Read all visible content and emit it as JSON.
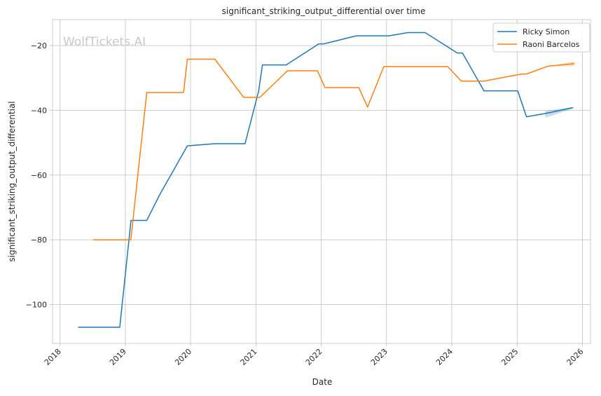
{
  "chart_data": {
    "type": "line",
    "title": "significant_striking_output_differential over time",
    "xlabel": "Date",
    "ylabel": "significant_striking_output_differential",
    "watermark": "WolfTickets.AI",
    "xlim": [
      "2017-11-20",
      "2026-02-15"
    ],
    "ylim": [
      -112,
      -12
    ],
    "x_ticks": [
      "2018-01-01",
      "2019-01-01",
      "2020-01-01",
      "2021-01-01",
      "2022-01-01",
      "2023-01-01",
      "2024-01-01",
      "2025-01-01",
      "2026-01-01"
    ],
    "x_tick_labels": [
      "2018",
      "2019",
      "2020",
      "2021",
      "2022",
      "2023",
      "2024",
      "2025",
      "2026"
    ],
    "y_ticks": [
      -100,
      -80,
      -60,
      -40,
      -20
    ],
    "y_tick_labels": [
      "−100",
      "−80",
      "−60",
      "−40",
      "−20"
    ],
    "grid": true,
    "legend_position": "top-right",
    "series": [
      {
        "name": "Ricky Simon",
        "color": "#1f77b4",
        "x": [
          "2018-04-14",
          "2018-12-01",
          "2019-02-02",
          "2019-05-01",
          "2019-07-13",
          "2019-12-14",
          "2020-05-16",
          "2020-11-01",
          "2021-01-16",
          "2021-02-06",
          "2021-06-19",
          "2021-12-18",
          "2022-01-15",
          "2022-07-16",
          "2023-01-14",
          "2023-05-01",
          "2023-08-05",
          "2024-02-01",
          "2024-03-01",
          "2024-06-29",
          "2025-01-04",
          "2025-02-22",
          "2025-06-07",
          "2025-11-08"
        ],
        "y": [
          -107,
          -107,
          -74,
          -74,
          -66,
          -51,
          -50.3,
          -50.3,
          -34,
          -26,
          -26,
          -19.5,
          -19.5,
          -17,
          -17,
          -16,
          -16,
          -22.3,
          -22.3,
          -34,
          -34,
          -42,
          -41,
          -39.2
        ],
        "band": {
          "x": [
            "2025-06-07",
            "2025-11-08"
          ],
          "lower": [
            -42.3,
            -39.5
          ],
          "upper": [
            -40.2,
            -39.0
          ]
        }
      },
      {
        "name": "Raoni Barcelos",
        "color": "#ff7f0e",
        "x": [
          "2018-07-07",
          "2019-02-01",
          "2019-05-01",
          "2019-11-23",
          "2019-12-14",
          "2020-05-16",
          "2020-10-24",
          "2021-01-23",
          "2021-06-26",
          "2021-12-11",
          "2022-01-22",
          "2022-07-30",
          "2022-09-17",
          "2022-12-17",
          "2023-05-06",
          "2023-12-09",
          "2024-02-24",
          "2024-06-29",
          "2025-01-25",
          "2025-02-22",
          "2025-06-21",
          "2025-11-15"
        ],
        "y": [
          -80,
          -80,
          -34.5,
          -34.5,
          -24.2,
          -24.2,
          -36,
          -36,
          -27.8,
          -27.8,
          -33,
          -33,
          -39,
          -26.5,
          -26.5,
          -26.5,
          -31,
          -31,
          -28.8,
          -28.8,
          -26.4,
          -25.6
        ],
        "band": {
          "x": [
            "2025-06-21",
            "2025-11-15"
          ],
          "lower": [
            -26.4,
            -26.4
          ],
          "upper": [
            -26.4,
            -24.9
          ]
        }
      }
    ]
  }
}
